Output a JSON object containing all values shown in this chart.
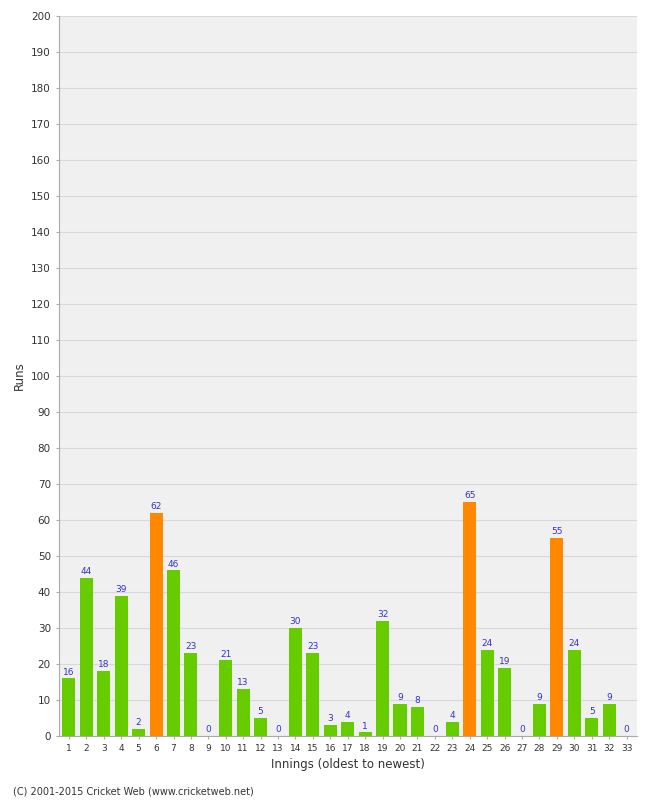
{
  "xlabel": "Innings (oldest to newest)",
  "ylabel": "Runs",
  "categories": [
    1,
    2,
    3,
    4,
    5,
    6,
    7,
    8,
    9,
    10,
    11,
    12,
    13,
    14,
    15,
    16,
    17,
    18,
    19,
    20,
    21,
    22,
    23,
    24,
    25,
    26,
    27,
    28,
    29,
    30,
    31,
    32,
    33
  ],
  "values": [
    16,
    44,
    18,
    39,
    2,
    62,
    46,
    23,
    0,
    21,
    13,
    5,
    0,
    30,
    23,
    3,
    4,
    1,
    32,
    9,
    8,
    0,
    4,
    65,
    24,
    19,
    0,
    9,
    55,
    24,
    5,
    9,
    0
  ],
  "colors": [
    "#66cc00",
    "#66cc00",
    "#66cc00",
    "#66cc00",
    "#66cc00",
    "#ff8800",
    "#66cc00",
    "#66cc00",
    "#66cc00",
    "#66cc00",
    "#66cc00",
    "#66cc00",
    "#66cc00",
    "#66cc00",
    "#66cc00",
    "#66cc00",
    "#66cc00",
    "#66cc00",
    "#66cc00",
    "#66cc00",
    "#66cc00",
    "#66cc00",
    "#66cc00",
    "#ff8800",
    "#66cc00",
    "#66cc00",
    "#66cc00",
    "#66cc00",
    "#ff8800",
    "#66cc00",
    "#66cc00",
    "#66cc00",
    "#66cc00"
  ],
  "ylim": [
    0,
    200
  ],
  "yticks": [
    0,
    10,
    20,
    30,
    40,
    50,
    60,
    70,
    80,
    90,
    100,
    110,
    120,
    130,
    140,
    150,
    160,
    170,
    180,
    190,
    200
  ],
  "label_color": "#3333cc",
  "label_fontsize": 6.5,
  "bar_width": 0.75,
  "background_color": "#ffffff",
  "plot_bg_color": "#f0f0f0",
  "grid_color": "#d8d8d8",
  "tick_color": "#333333",
  "footer": "(C) 2001-2015 Cricket Web (www.cricketweb.net)",
  "spine_color": "#aaaaaa"
}
